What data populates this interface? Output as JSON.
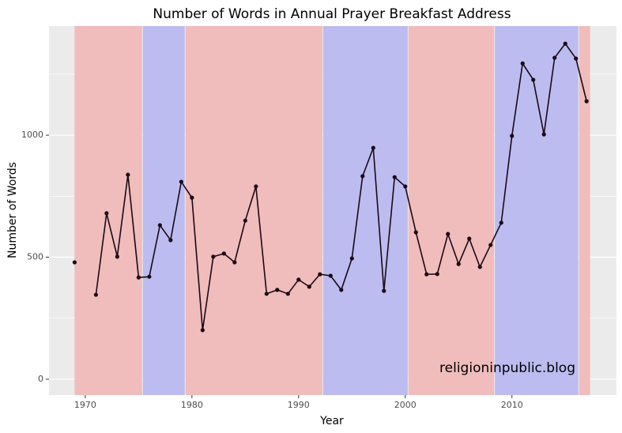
{
  "chart_data": {
    "type": "line",
    "title": "Number of Words in Annual Prayer Breakfast Address",
    "x_label": "Year",
    "y_label": "Number of Words",
    "annotation": "religioninpublic.blog",
    "x": [
      1969,
      1970,
      1971,
      1972,
      1973,
      1974,
      1975,
      1976,
      1977,
      1978,
      1979,
      1980,
      1981,
      1982,
      1983,
      1984,
      1985,
      1986,
      1987,
      1988,
      1989,
      1990,
      1991,
      1992,
      1993,
      1994,
      1995,
      1996,
      1997,
      1998,
      1999,
      2000,
      2001,
      2002,
      2003,
      2004,
      2005,
      2006,
      2007,
      2008,
      2009,
      2010,
      2011,
      2012,
      2013,
      2014,
      2015,
      2016,
      2017
    ],
    "series": [
      {
        "name": "Words",
        "color": "#1a0a14",
        "values": [
          479,
          null,
          346,
          680,
          502,
          838,
          417,
          420,
          631,
          570,
          809,
          744,
          201,
          502,
          515,
          479,
          650,
          790,
          350,
          366,
          350,
          408,
          379,
          430,
          424,
          366,
          495,
          832,
          948,
          362,
          828,
          790,
          602,
          430,
          431,
          595,
          472,
          576,
          460,
          550,
          641,
          997,
          1294,
          1227,
          1003,
          1317,
          1375,
          1314,
          1139
        ]
      }
    ],
    "regions": [
      {
        "start": 1969,
        "end": 1975.4,
        "color": "#f0bcbc"
      },
      {
        "start": 1975.4,
        "end": 1979.4,
        "color": "#bcbcf0"
      },
      {
        "start": 1979.4,
        "end": 1992.3,
        "color": "#f0bcbc"
      },
      {
        "start": 1992.3,
        "end": 2000.3,
        "color": "#bcbcf0"
      },
      {
        "start": 2000.3,
        "end": 2008.4,
        "color": "#f0bcbc"
      },
      {
        "start": 2008.4,
        "end": 2016.3,
        "color": "#bcbcf0"
      },
      {
        "start": 2016.3,
        "end": 2017.4,
        "color": "#f0bcbc"
      }
    ],
    "xlim": [
      1966.6,
      2019.8
    ],
    "ylim": [
      -65,
      1447
    ],
    "xticks": [
      1970,
      1980,
      1990,
      2000,
      2010
    ],
    "yticks": [
      0,
      500,
      1000
    ],
    "x_minor_ticks": [
      1975,
      1985,
      1995,
      2005,
      2015
    ],
    "y_minor_ticks": [
      250,
      750,
      1250
    ],
    "grid": true
  }
}
